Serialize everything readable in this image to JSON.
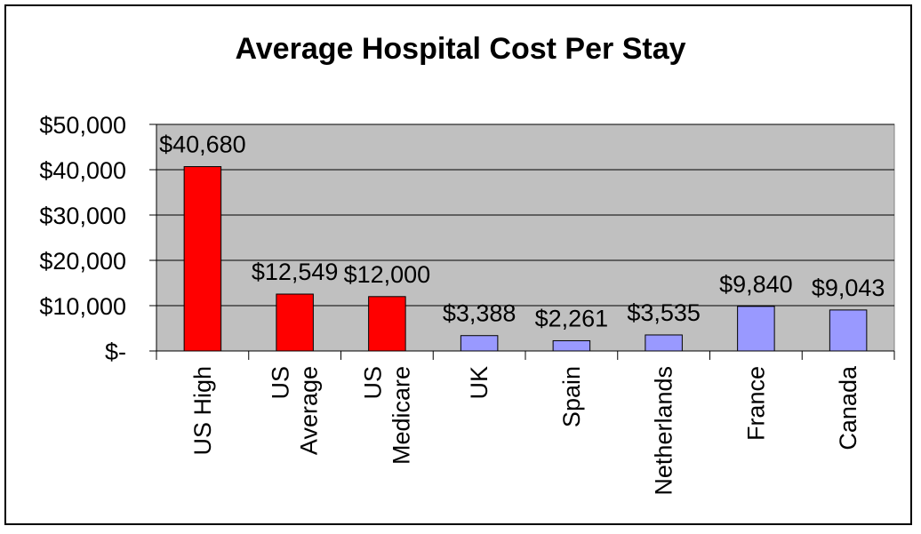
{
  "chart_data": {
    "type": "bar",
    "title": "Average Hospital Cost Per Stay",
    "xlabel": "",
    "ylabel": "",
    "ylim": [
      0,
      50000
    ],
    "yticks": [
      {
        "value": 0,
        "label": "$-"
      },
      {
        "value": 10000,
        "label": "$10,000"
      },
      {
        "value": 20000,
        "label": "$20,000"
      },
      {
        "value": 30000,
        "label": "$30,000"
      },
      {
        "value": 40000,
        "label": "$40,000"
      },
      {
        "value": 50000,
        "label": "$50,000"
      }
    ],
    "grid": true,
    "legend": "none",
    "categories": [
      {
        "lines": [
          "US High"
        ]
      },
      {
        "lines": [
          "US",
          "Average"
        ]
      },
      {
        "lines": [
          "US",
          "Medicare"
        ]
      },
      {
        "lines": [
          "UK"
        ]
      },
      {
        "lines": [
          "Spain"
        ]
      },
      {
        "lines": [
          "Netherlands"
        ]
      },
      {
        "lines": [
          "France"
        ]
      },
      {
        "lines": [
          "Canada"
        ]
      }
    ],
    "values": [
      40680,
      12549,
      12000,
      3388,
      2261,
      3535,
      9840,
      9043
    ],
    "data_labels": [
      "$40,680",
      "$12,549",
      "$12,000",
      "$3,388",
      "$2,261",
      "$3,535",
      "$9,840",
      "$9,043"
    ],
    "colors": [
      "#ff0000",
      "#ff0000",
      "#ff0000",
      "#9999ff",
      "#9999ff",
      "#9999ff",
      "#9999ff",
      "#9999ff"
    ],
    "plot_background": "#c0c0c0"
  }
}
